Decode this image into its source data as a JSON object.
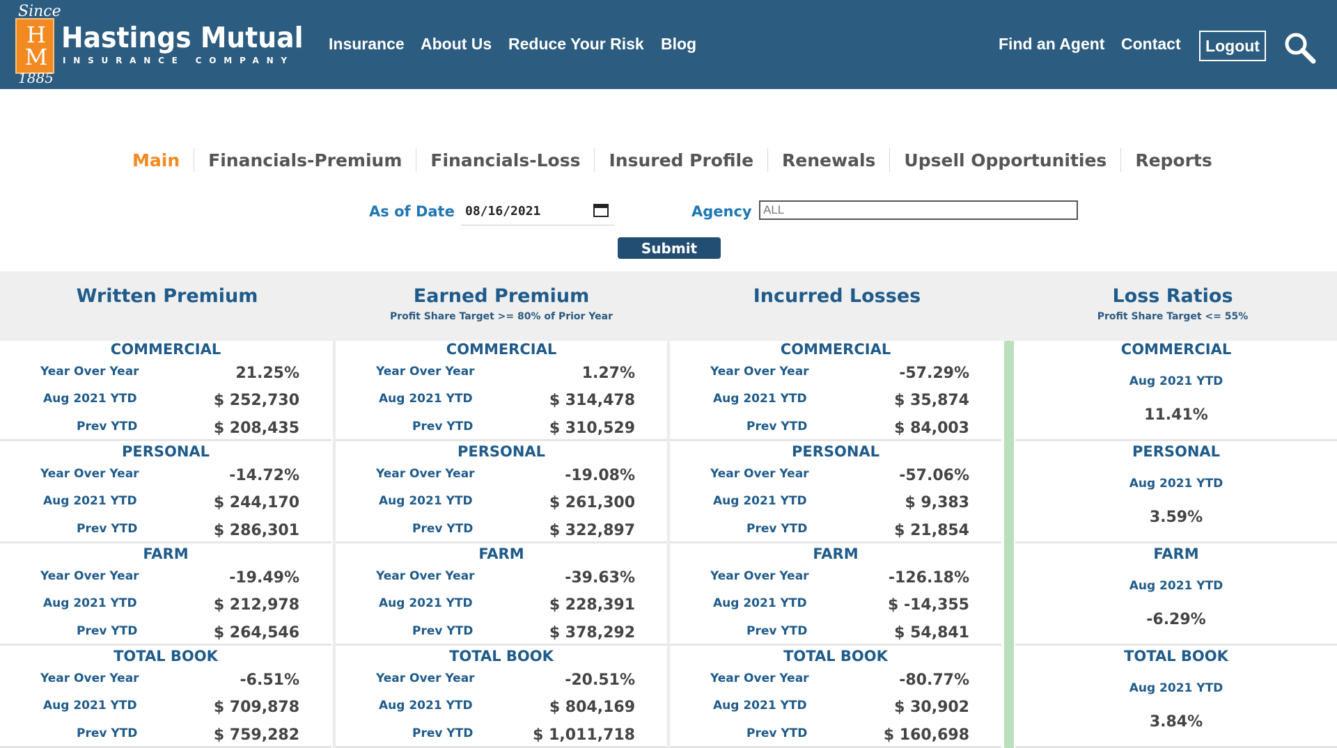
{
  "header": {
    "logo": {
      "since": "Since",
      "letters_top": "H",
      "letters_bottom": "M",
      "year": "1885"
    },
    "company_name": "Hastings Mutual",
    "company_sub": "INSURANCE COMPANY",
    "nav": [
      "Insurance",
      "About Us",
      "Reduce Your Risk",
      "Blog"
    ],
    "right_nav": [
      "Find an Agent",
      "Contact"
    ],
    "logout_label": "Logout",
    "colors": {
      "bar": "#2c5c7f",
      "logo": "#f28a21"
    }
  },
  "tabs": [
    {
      "label": "Main",
      "active": true
    },
    {
      "label": "Financials-Premium",
      "active": false
    },
    {
      "label": "Financials-Loss",
      "active": false
    },
    {
      "label": "Insured Profile",
      "active": false
    },
    {
      "label": "Renewals",
      "active": false
    },
    {
      "label": "Upsell Opportunities",
      "active": false
    },
    {
      "label": "Reports",
      "active": false
    }
  ],
  "filters": {
    "date_label": "As of Date",
    "date_value": "08/16/2021",
    "agency_label": "Agency",
    "agency_value": "ALL",
    "submit_label": "Submit"
  },
  "columns": [
    {
      "title": "Written Premium",
      "subtitle": "",
      "sections": [
        {
          "name": "COMMERCIAL",
          "yoy": "21.25%",
          "ytd": "$ 252,730",
          "prev": "$ 208,435"
        },
        {
          "name": "PERSONAL",
          "yoy": "-14.72%",
          "ytd": "$ 244,170",
          "prev": "$ 286,301"
        },
        {
          "name": "FARM",
          "yoy": "-19.49%",
          "ytd": "$ 212,978",
          "prev": "$ 264,546"
        },
        {
          "name": "TOTAL BOOK",
          "yoy": "-6.51%",
          "ytd": "$ 709,878",
          "prev": "$ 759,282"
        }
      ]
    },
    {
      "title": "Earned Premium",
      "subtitle": "Profit Share Target >= 80% of Prior Year",
      "sections": [
        {
          "name": "COMMERCIAL",
          "yoy": "1.27%",
          "ytd": "$ 314,478",
          "prev": "$ 310,529"
        },
        {
          "name": "PERSONAL",
          "yoy": "-19.08%",
          "ytd": "$ 261,300",
          "prev": "$ 322,897"
        },
        {
          "name": "FARM",
          "yoy": "-39.63%",
          "ytd": "$ 228,391",
          "prev": "$ 378,292"
        },
        {
          "name": "TOTAL BOOK",
          "yoy": "-20.51%",
          "ytd": "$ 804,169",
          "prev": "$ 1,011,718"
        }
      ]
    },
    {
      "title": "Incurred Losses",
      "subtitle": "",
      "sections": [
        {
          "name": "COMMERCIAL",
          "yoy": "-57.29%",
          "ytd": "$ 35,874",
          "prev": "$ 84,003"
        },
        {
          "name": "PERSONAL",
          "yoy": "-57.06%",
          "ytd": "$ 9,383",
          "prev": "$ 21,854"
        },
        {
          "name": "FARM",
          "yoy": "-126.18%",
          "ytd": "$ -14,355",
          "prev": "$ 54,841"
        },
        {
          "name": "TOTAL BOOK",
          "yoy": "-80.77%",
          "ytd": "$ 30,902",
          "prev": "$ 160,698"
        }
      ]
    }
  ],
  "row_labels": {
    "yoy": "Year Over Year",
    "ytd": "Aug 2021 YTD",
    "prev": "Prev YTD"
  },
  "loss_ratios": {
    "title": "Loss Ratios",
    "subtitle": "Profit Share Target <= 55%",
    "period_label": "Aug 2021 YTD",
    "sections": [
      {
        "name": "COMMERCIAL",
        "value": "11.41%"
      },
      {
        "name": "PERSONAL",
        "value": "3.59%"
      },
      {
        "name": "FARM",
        "value": "-6.29%"
      },
      {
        "name": "TOTAL BOOK",
        "value": "3.84%"
      }
    ]
  }
}
